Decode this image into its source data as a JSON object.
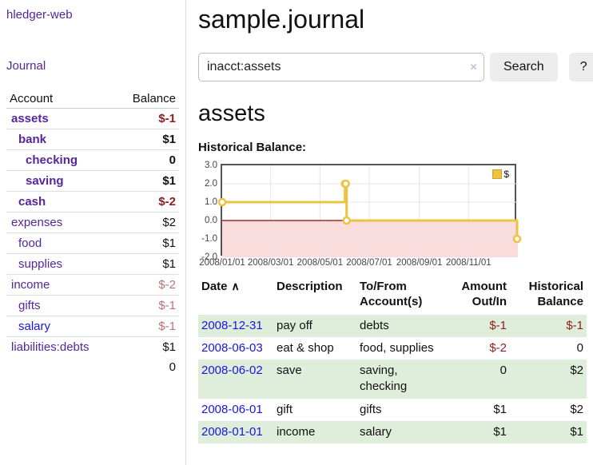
{
  "app": {
    "brand": "hledger-web",
    "nav_journal": "Journal"
  },
  "page": {
    "title": "sample.journal"
  },
  "search": {
    "query": "inacct:assets",
    "clear_icon": "×",
    "search_label": "Search",
    "help_label": "?"
  },
  "account_view": {
    "heading": "assets",
    "chart_label": "Historical Balance:"
  },
  "sidebar_table": {
    "col_account": "Account",
    "col_balance": "Balance",
    "rows": [
      {
        "name": "assets",
        "balance": "$-1",
        "indent": 1,
        "bold": true,
        "neg": "strong",
        "link": "purple"
      },
      {
        "name": "bank",
        "balance": "$1",
        "indent": 2,
        "bold": true,
        "neg": "none",
        "link": "purple"
      },
      {
        "name": "checking",
        "balance": "0",
        "indent": 3,
        "bold": true,
        "neg": "none",
        "link": "purple"
      },
      {
        "name": "saving",
        "balance": "$1",
        "indent": 3,
        "bold": true,
        "neg": "none",
        "link": "purple"
      },
      {
        "name": "cash",
        "balance": "$-2",
        "indent": 2,
        "bold": true,
        "neg": "strong",
        "link": "purple"
      },
      {
        "name": "expenses",
        "balance": "$2",
        "indent": 1,
        "bold": false,
        "neg": "none",
        "link": "purple"
      },
      {
        "name": "food",
        "balance": "$1",
        "indent": 2,
        "bold": false,
        "neg": "none",
        "link": "purple"
      },
      {
        "name": "supplies",
        "balance": "$1",
        "indent": 2,
        "bold": false,
        "neg": "none",
        "link": "purple"
      },
      {
        "name": "income",
        "balance": "$-2",
        "indent": 1,
        "bold": false,
        "neg": "soft",
        "link": "purple"
      },
      {
        "name": "gifts",
        "balance": "$-1",
        "indent": 2,
        "bold": false,
        "neg": "soft",
        "link": "purple"
      },
      {
        "name": "salary",
        "balance": "$-1",
        "indent": 2,
        "bold": false,
        "neg": "soft",
        "link": "blue"
      },
      {
        "name": "liabilities:debts",
        "balance": "$1",
        "indent": 1,
        "bold": false,
        "neg": "none",
        "link": "purple"
      }
    ],
    "total": "0"
  },
  "chart_data": {
    "type": "line",
    "step": true,
    "title": "Historical Balance:",
    "series": [
      {
        "name": "$",
        "color": "#edc240",
        "x": [
          "2008-01-01",
          "2008-06-01",
          "2008-06-02",
          "2008-06-03",
          "2008-12-31"
        ],
        "values": [
          1,
          2,
          2,
          0,
          -1
        ]
      }
    ],
    "ylim": [
      -2,
      3
    ],
    "xlim": [
      "2008-01-01",
      "2009-01-01"
    ],
    "yticks": [
      "3.0",
      "2.0",
      "1.0",
      "0.0",
      "-1.0",
      "-2.0"
    ],
    "xticks": [
      "2008/01/01",
      "2008/03/01",
      "2008/05/01",
      "2008/07/01",
      "2008/09/01",
      "2008/11/01"
    ],
    "grid": true,
    "legend_position": "top-right",
    "zero_line_color": "#990000",
    "negative_region_color": "#fbdcdc",
    "grid_color": "#e4e4e4"
  },
  "register": {
    "headers": {
      "date": "Date",
      "sort_icon": "∧",
      "description": "Description",
      "accounts": "To/From Account(s)",
      "amount": "Amount Out/In",
      "balance": "Historical Balance"
    },
    "rows": [
      {
        "date": "2008-12-31",
        "description": "pay off",
        "accounts": "debts",
        "amount": "$-1",
        "amount_neg": true,
        "balance": "$-1",
        "balance_neg": true,
        "alt": true
      },
      {
        "date": "2008-06-03",
        "description": "eat & shop",
        "accounts": "food, supplies",
        "amount": "$-2",
        "amount_neg": true,
        "balance": "0",
        "balance_neg": false,
        "alt": false
      },
      {
        "date": "2008-06-02",
        "description": "save",
        "accounts": "saving, checking",
        "amount": "0",
        "amount_neg": false,
        "balance": "$2",
        "balance_neg": false,
        "alt": true
      },
      {
        "date": "2008-06-01",
        "description": "gift",
        "accounts": "gifts",
        "amount": "$1",
        "amount_neg": false,
        "balance": "$2",
        "balance_neg": false,
        "alt": false
      },
      {
        "date": "2008-01-01",
        "description": "income",
        "accounts": "salary",
        "amount": "$1",
        "amount_neg": false,
        "balance": "$1",
        "balance_neg": false,
        "alt": true
      }
    ]
  },
  "colors": {
    "purple_link": "#56259c",
    "blue_link": "#1616e0",
    "negative_strong": "#8f1d1d",
    "negative_soft": "#bc7175",
    "row_green": "#dfeeda",
    "button_gray": "#ececec",
    "series_yellow": "#edc240",
    "zero_line": "#990000",
    "negative_region": "#fbdcdc",
    "grid_line": "#e4e4e4",
    "chart_border": "#545454",
    "clear_icon_lavender": "#c7bfe2"
  }
}
